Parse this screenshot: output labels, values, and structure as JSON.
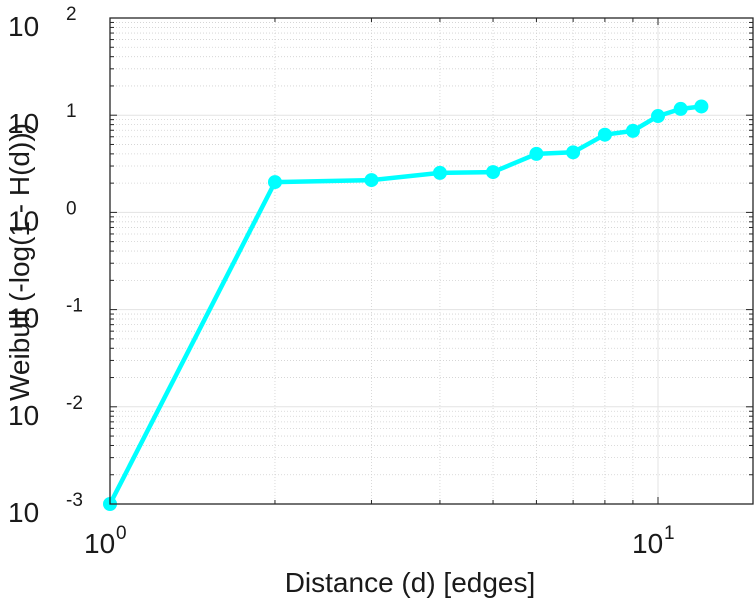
{
  "chart_data": {
    "type": "line",
    "title": "",
    "xlabel": "Distance (d) [edges]",
    "ylabel": "Weibull (-log(1 - H(d)))",
    "xscale": "log",
    "yscale": "log",
    "xlim": [
      1,
      15
    ],
    "ylim": [
      0.001,
      100
    ],
    "grid": "major and minor",
    "series": [
      {
        "name": "Weibull",
        "color": "#00ffff",
        "marker": "circle",
        "x": [
          1,
          2,
          3,
          4,
          5,
          6,
          7,
          8,
          9,
          10,
          11,
          12
        ],
        "y": [
          0.001,
          2.05,
          2.15,
          2.55,
          2.6,
          4.0,
          4.15,
          6.3,
          6.9,
          9.8,
          11.6,
          12.3
        ]
      }
    ],
    "x_ticks": [
      {
        "value": 1,
        "base": "10",
        "exp": "0"
      },
      {
        "value": 10,
        "base": "10",
        "exp": "1"
      }
    ],
    "y_ticks": [
      {
        "value": 0.001,
        "base": "10",
        "exp": "-3"
      },
      {
        "value": 0.01,
        "base": "10",
        "exp": "-2"
      },
      {
        "value": 0.1,
        "base": "10",
        "exp": "-1"
      },
      {
        "value": 1,
        "base": "10",
        "exp": "0"
      },
      {
        "value": 10,
        "base": "10",
        "exp": "1"
      },
      {
        "value": 100,
        "base": "10",
        "exp": "2"
      }
    ]
  }
}
